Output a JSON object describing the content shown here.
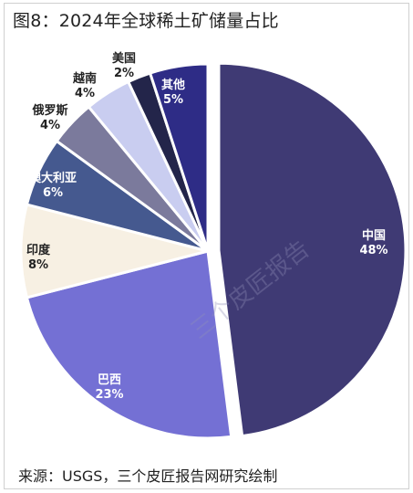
{
  "header": {
    "title": "图8：2024年全球稀土矿储量占比"
  },
  "watermark": "三个皮匠报告",
  "footer": {
    "source": "来源：USGS，三个皮匠报告网研究绘制"
  },
  "chart_data": {
    "type": "pie",
    "title": "图8：2024年全球稀土矿储量占比",
    "unit": "%",
    "slices": [
      {
        "label": "中国",
        "value": 48,
        "display": "48%",
        "color": "#3f3a74",
        "text_color": "#ffffff"
      },
      {
        "label": "巴西",
        "value": 23,
        "display": "23%",
        "color": "#7470d4",
        "text_color": "#ffffff"
      },
      {
        "label": "印度",
        "value": 8,
        "display": "8%",
        "color": "#f7f0e3",
        "text_color": "#222222"
      },
      {
        "label": "澳大利亚",
        "value": 6,
        "display": "6%",
        "color": "#45598f",
        "text_color": "#ffffff"
      },
      {
        "label": "俄罗斯",
        "value": 4,
        "display": "4%",
        "color": "#7b7a9c",
        "text_color": "#222222"
      },
      {
        "label": "越南",
        "value": 4,
        "display": "4%",
        "color": "#c9cdf0",
        "text_color": "#222222"
      },
      {
        "label": "美国",
        "value": 2,
        "display": "2%",
        "color": "#23254a",
        "text_color": "#222222"
      },
      {
        "label": "其他",
        "value": 5,
        "display": "5%",
        "color": "#2e2c86",
        "text_color": "#ffffff"
      }
    ]
  }
}
